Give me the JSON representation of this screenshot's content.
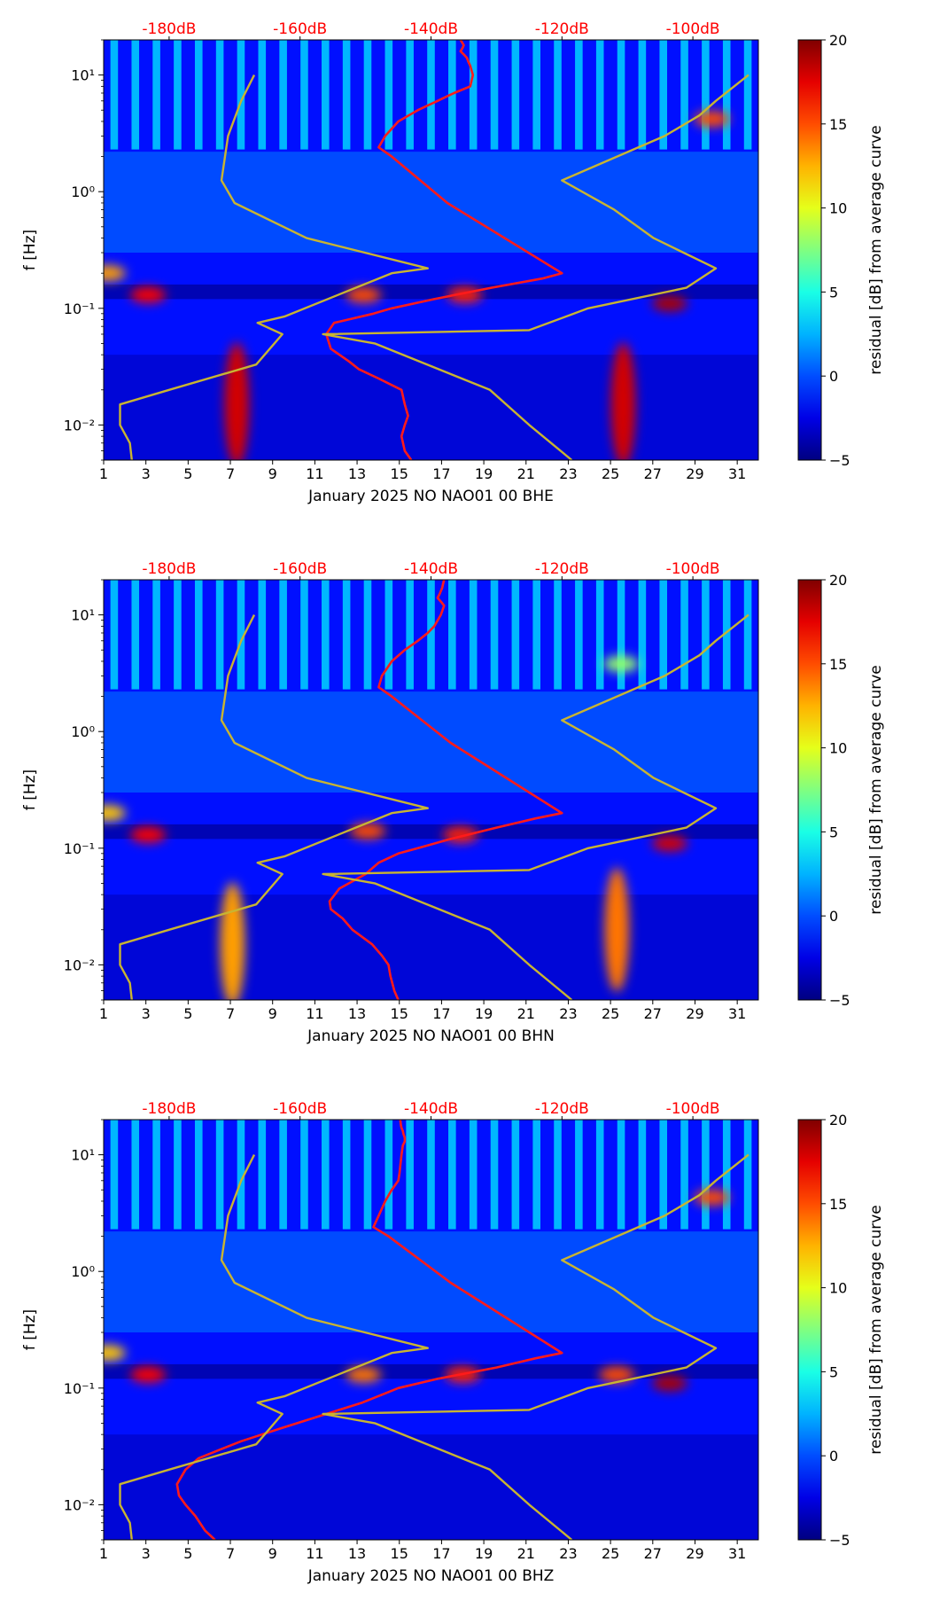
{
  "figure": {
    "colorbar_ticks": [
      "20",
      "15",
      "10",
      "5",
      "0",
      "−5"
    ],
    "colors": {
      "psd_median": "#ff1a1a",
      "noise_models": "#c8b432",
      "top_axis_text": "#ff0000"
    }
  },
  "chart_data": [
    {
      "type": "heatmap",
      "title": "",
      "xlabel": "January 2025 NO NAO01 00 BHE",
      "ylabel": "f [Hz]",
      "colorbar_label": "residual [dB] from average curve",
      "x_ticks": [
        "1",
        "3",
        "5",
        "7",
        "9",
        "11",
        "13",
        "15",
        "17",
        "19",
        "21",
        "23",
        "25",
        "27",
        "29",
        "31"
      ],
      "y_ticks": [
        "10⁻²",
        "10⁻¹",
        "10⁰",
        "10¹"
      ],
      "top_ticks": [
        "-180dB",
        "-160dB",
        "-140dB",
        "-120dB",
        "-100dB"
      ],
      "xlim": [
        1,
        32
      ],
      "ylim_hz": [
        0.005,
        20
      ],
      "zlim_db": [
        -5,
        20
      ],
      "hot_spots": [
        {
          "day": 1.2,
          "f_hz": 0.2,
          "db": 13
        },
        {
          "day": 3.1,
          "f_hz": 0.13,
          "db": 17
        },
        {
          "day": 7.3,
          "f_hz": 0.015,
          "db": 18
        },
        {
          "day": 13.3,
          "f_hz": 0.13,
          "db": 15
        },
        {
          "day": 18.1,
          "f_hz": 0.13,
          "db": 16
        },
        {
          "day": 25.6,
          "f_hz": 0.015,
          "db": 18
        },
        {
          "day": 27.8,
          "f_hz": 0.11,
          "db": 19
        },
        {
          "day": 29.8,
          "f_hz": 4.2,
          "db": 15
        }
      ],
      "series": [
        {
          "name": "median PSD",
          "db": [
            -143,
            -144,
            -144.5,
            -144,
            -143.5,
            -144,
            -144.5,
            -148,
            -151,
            -152.5,
            -155.3,
            -156,
            -154.8,
            -148.8,
            -146,
            -139.5,
            -130.8,
            -123,
            -120,
            -137.5,
            -146,
            -148,
            -147,
            -145,
            -142,
            -139,
            -136.5,
            -134,
            -133.6,
            -134,
            -134.3,
            -134.5,
            -135,
            -135.5,
            -135.2,
            -135,
            -135.5
          ],
          "f_hz": [
            0.005,
            0.006,
            0.008,
            0.01,
            0.012,
            0.015,
            0.02,
            0.025,
            0.03,
            0.035,
            0.045,
            0.06,
            0.075,
            0.09,
            0.1,
            0.12,
            0.15,
            0.18,
            0.2,
            0.8,
            2,
            2.4,
            3,
            4,
            5,
            6,
            7,
            8,
            10,
            12,
            13,
            14,
            15,
            16,
            17,
            18,
            20
          ]
        },
        {
          "name": "NLNM",
          "db": [
            -185.7,
            -186,
            -187.5,
            -187.5,
            -180,
            -166.7,
            -162.7,
            -166.5,
            -162.4,
            -146,
            -140.5,
            -159,
            -170,
            -172,
            -171,
            -169,
            -167
          ],
          "f_hz": [
            0.005,
            0.007,
            0.01,
            0.015,
            0.02,
            0.033,
            0.06,
            0.075,
            0.085,
            0.2,
            0.22,
            0.4,
            0.8,
            1.25,
            3,
            6,
            10
          ]
        },
        {
          "name": "NHNM",
          "db": [
            -118.5,
            -125,
            -131,
            -148.6,
            -156.5,
            -125,
            -116,
            -101,
            -96.5,
            -106,
            -112,
            -120,
            -104.3,
            -99,
            -96.5,
            -91.5
          ],
          "f_hz": [
            0.005,
            0.01,
            0.02,
            0.05,
            0.06,
            0.065,
            0.1,
            0.15,
            0.22,
            0.4,
            0.7,
            1.25,
            3,
            4.5,
            6,
            10
          ]
        }
      ]
    },
    {
      "type": "heatmap",
      "title": "",
      "xlabel": "January 2025 NO NAO01 00 BHN",
      "ylabel": "f [Hz]",
      "colorbar_label": "residual [dB] from average curve",
      "x_ticks": [
        "1",
        "3",
        "5",
        "7",
        "9",
        "11",
        "13",
        "15",
        "17",
        "19",
        "21",
        "23",
        "25",
        "27",
        "29",
        "31"
      ],
      "y_ticks": [
        "10⁻²",
        "10⁻¹",
        "10⁰",
        "10¹"
      ],
      "top_ticks": [
        "-180dB",
        "-160dB",
        "-140dB",
        "-120dB",
        "-100dB"
      ],
      "xlim": [
        1,
        32
      ],
      "ylim_hz": [
        0.005,
        20
      ],
      "zlim_db": [
        -5,
        20
      ],
      "hot_spots": [
        {
          "day": 1.2,
          "f_hz": 0.2,
          "db": 12
        },
        {
          "day": 3.1,
          "f_hz": 0.13,
          "db": 17
        },
        {
          "day": 7.1,
          "f_hz": 0.015,
          "db": 13
        },
        {
          "day": 13.5,
          "f_hz": 0.14,
          "db": 15
        },
        {
          "day": 17.9,
          "f_hz": 0.13,
          "db": 16
        },
        {
          "day": 25.3,
          "f_hz": 0.02,
          "db": 14
        },
        {
          "day": 27.8,
          "f_hz": 0.11,
          "db": 18
        },
        {
          "day": 25.5,
          "f_hz": 3.8,
          "db": 8
        }
      ],
      "series": [
        {
          "name": "median PSD",
          "db": [
            -145,
            -145.6,
            -146.2,
            -146.5,
            -147.5,
            -149,
            -152,
            -153.5,
            -155.3,
            -155.5,
            -154,
            -150,
            -148,
            -145,
            -142,
            -137,
            -130,
            -124,
            -120,
            -137,
            -146,
            -148,
            -147.5,
            -146,
            -144,
            -142,
            -140.5,
            -139.5,
            -138.5,
            -138,
            -138.5,
            -139,
            -138.7,
            -138.5,
            -138.3,
            -138.2,
            -138
          ],
          "f_hz": [
            0.005,
            0.006,
            0.008,
            0.01,
            0.012,
            0.015,
            0.02,
            0.025,
            0.03,
            0.035,
            0.045,
            0.06,
            0.075,
            0.09,
            0.1,
            0.12,
            0.15,
            0.18,
            0.2,
            0.8,
            2,
            2.4,
            3,
            4,
            5,
            6,
            7,
            8,
            10,
            12,
            13,
            14,
            15,
            16,
            17,
            18,
            20
          ]
        },
        {
          "name": "NLNM",
          "db": [
            -185.7,
            -186,
            -187.5,
            -187.5,
            -180,
            -166.7,
            -162.7,
            -166.5,
            -162.4,
            -146,
            -140.5,
            -159,
            -170,
            -172,
            -171,
            -169,
            -167
          ],
          "f_hz": [
            0.005,
            0.007,
            0.01,
            0.015,
            0.02,
            0.033,
            0.06,
            0.075,
            0.085,
            0.2,
            0.22,
            0.4,
            0.8,
            1.25,
            3,
            6,
            10
          ]
        },
        {
          "name": "NHNM",
          "db": [
            -118.5,
            -125,
            -131,
            -148.6,
            -156.5,
            -125,
            -116,
            -101,
            -96.5,
            -106,
            -112,
            -120,
            -104.3,
            -99,
            -96.5,
            -91.5
          ],
          "f_hz": [
            0.005,
            0.01,
            0.02,
            0.05,
            0.06,
            0.065,
            0.1,
            0.15,
            0.22,
            0.4,
            0.7,
            1.25,
            3,
            4.5,
            6,
            10
          ]
        }
      ]
    },
    {
      "type": "heatmap",
      "title": "",
      "xlabel": "January 2025 NO NAO01 00 BHZ",
      "ylabel": "f [Hz]",
      "colorbar_label": "residual [dB] from average curve",
      "x_ticks": [
        "1",
        "3",
        "5",
        "7",
        "9",
        "11",
        "13",
        "15",
        "17",
        "19",
        "21",
        "23",
        "25",
        "27",
        "29",
        "31"
      ],
      "y_ticks": [
        "10⁻²",
        "10⁻¹",
        "10⁰",
        "10¹"
      ],
      "top_ticks": [
        "-180dB",
        "-160dB",
        "-140dB",
        "-120dB",
        "-100dB"
      ],
      "xlim": [
        1,
        32
      ],
      "ylim_hz": [
        0.005,
        20
      ],
      "zlim_db": [
        -5,
        20
      ],
      "hot_spots": [
        {
          "day": 1.2,
          "f_hz": 0.2,
          "db": 12
        },
        {
          "day": 3.1,
          "f_hz": 0.13,
          "db": 17
        },
        {
          "day": 13.3,
          "f_hz": 0.13,
          "db": 14
        },
        {
          "day": 18.0,
          "f_hz": 0.13,
          "db": 16
        },
        {
          "day": 25.3,
          "f_hz": 0.13,
          "db": 15
        },
        {
          "day": 27.8,
          "f_hz": 0.11,
          "db": 19
        },
        {
          "day": 29.8,
          "f_hz": 4.3,
          "db": 15
        }
      ],
      "series": [
        {
          "name": "median PSD",
          "db": [
            -173,
            -174.5,
            -176,
            -177.5,
            -178.5,
            -178.8,
            -177.5,
            -175.5,
            -172,
            -169,
            -163,
            -156,
            -150.5,
            -147,
            -145,
            -139,
            -130,
            -124,
            -120,
            -137,
            -146.5,
            -148.8,
            -148,
            -147,
            -146,
            -145,
            -144.8,
            -144.7,
            -144.5,
            -144.3,
            -144,
            -144,
            -144.2,
            -144.3,
            -144.5,
            -144.6,
            -144.7
          ],
          "f_hz": [
            0.005,
            0.006,
            0.008,
            0.01,
            0.012,
            0.015,
            0.02,
            0.025,
            0.03,
            0.035,
            0.045,
            0.06,
            0.075,
            0.09,
            0.1,
            0.12,
            0.15,
            0.18,
            0.2,
            0.8,
            2,
            2.4,
            3,
            4,
            5,
            6,
            7,
            8,
            10,
            12,
            13,
            14,
            15,
            16,
            17,
            18,
            20
          ]
        },
        {
          "name": "NLNM",
          "db": [
            -185.7,
            -186,
            -187.5,
            -187.5,
            -180,
            -166.7,
            -162.7,
            -166.5,
            -162.4,
            -146,
            -140.5,
            -159,
            -170,
            -172,
            -171,
            -169,
            -167
          ],
          "f_hz": [
            0.005,
            0.007,
            0.01,
            0.015,
            0.02,
            0.033,
            0.06,
            0.075,
            0.085,
            0.2,
            0.22,
            0.4,
            0.8,
            1.25,
            3,
            6,
            10
          ]
        },
        {
          "name": "NHNM",
          "db": [
            -118.5,
            -125,
            -131,
            -148.6,
            -156.5,
            -125,
            -116,
            -101,
            -96.5,
            -106,
            -112,
            -120,
            -104.3,
            -99,
            -96.5,
            -91.5
          ],
          "f_hz": [
            0.005,
            0.01,
            0.02,
            0.05,
            0.06,
            0.065,
            0.1,
            0.15,
            0.22,
            0.4,
            0.7,
            1.25,
            3,
            4.5,
            6,
            10
          ]
        }
      ]
    }
  ]
}
